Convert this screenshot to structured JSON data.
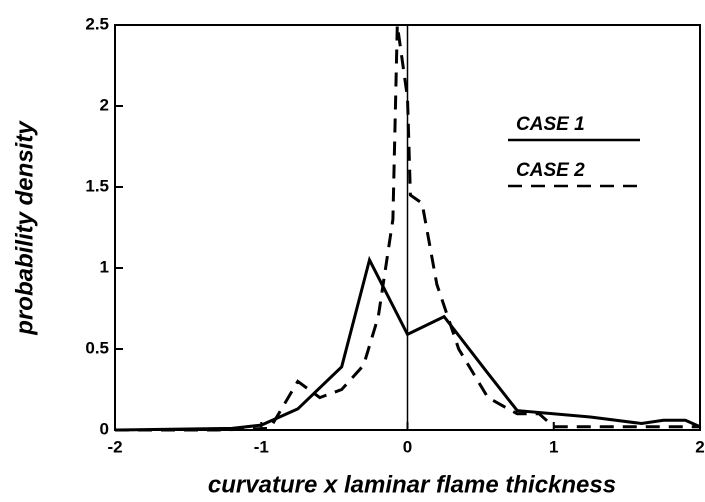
{
  "chart_data": {
    "type": "line",
    "xlabel": "curvature x laminar flame thickness",
    "ylabel": "probability density",
    "xlim": [
      -2,
      2
    ],
    "xticks": [
      -2,
      -1,
      0,
      1,
      2
    ],
    "ylim": [
      0,
      2.5
    ],
    "yticks": [
      0,
      0.5,
      1,
      1.5,
      2,
      2.5
    ],
    "vline": 0,
    "legend": "upper right",
    "series": [
      {
        "name": "CASE 1",
        "color": "#000000",
        "dash": false,
        "x": [
          -2,
          -1.2,
          -1.0,
          -0.75,
          -0.45,
          -0.26,
          0,
          0.25,
          0.55,
          0.75,
          1.25,
          1.6,
          1.75,
          1.9,
          2
        ],
        "values": [
          0,
          0.01,
          0.03,
          0.13,
          0.39,
          1.05,
          0.59,
          0.7,
          0.35,
          0.12,
          0.08,
          0.04,
          0.06,
          0.06,
          0.02
        ]
      },
      {
        "name": "CASE 2",
        "color": "#000000",
        "dash": true,
        "x": [
          -2,
          -1.3,
          -0.94,
          -0.75,
          -0.6,
          -0.45,
          -0.3,
          -0.2,
          -0.1,
          -0.07,
          0,
          0.02,
          0.1,
          0.2,
          0.35,
          0.55,
          0.75,
          0.9,
          1.0,
          2
        ],
        "values": [
          0,
          0,
          0.01,
          0.3,
          0.2,
          0.25,
          0.4,
          0.7,
          1.3,
          2.5,
          2.05,
          1.45,
          1.4,
          0.9,
          0.5,
          0.2,
          0.1,
          0.1,
          0.02,
          0.02
        ]
      }
    ]
  }
}
